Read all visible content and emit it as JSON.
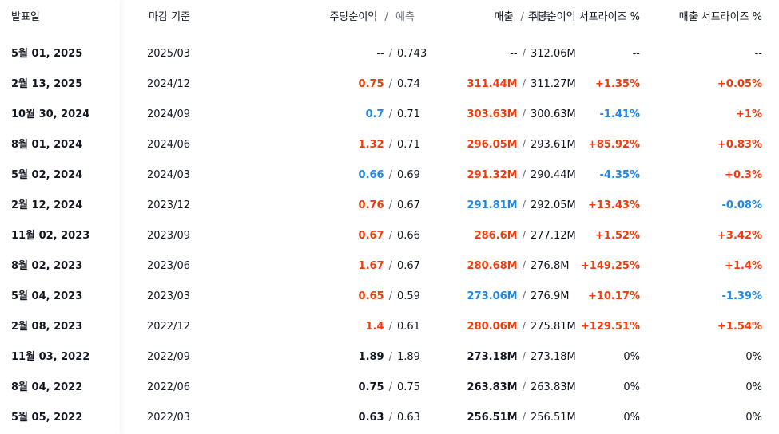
{
  "headers": {
    "date": "발표일",
    "period": "마감 기준",
    "eps": "주당순이익",
    "eps_sep": "/",
    "eps_sub": "예측",
    "rev": "매출",
    "rev_sep": "/",
    "rev_sub": "예측",
    "eps_surprise": "주당순이익 서프라이즈 %",
    "rev_surprise": "매출 서프라이즈 %"
  },
  "colors": {
    "positive": "#f23b0b",
    "negative": "#2087e8",
    "neutral": "#131722",
    "muted": "#6a6d78"
  },
  "rows": [
    {
      "date": "5월 01, 2025",
      "period": "2025/03",
      "eps": "--",
      "eps_fc": "0.743",
      "rev": "--",
      "rev_fc": "312.06M",
      "eps_s": "--",
      "rev_s": "--",
      "eps_c": "neutral",
      "rev_c": "neutral",
      "eps_s_c": "neutral",
      "rev_s_c": "neutral"
    },
    {
      "date": "2월 13, 2025",
      "period": "2024/12",
      "eps": "0.75",
      "eps_fc": "0.74",
      "rev": "311.44M",
      "rev_fc": "311.27M",
      "eps_s": "+1.35%",
      "rev_s": "+0.05%",
      "eps_c": "red",
      "rev_c": "red",
      "eps_s_c": "red",
      "rev_s_c": "red"
    },
    {
      "date": "10월 30, 2024",
      "period": "2024/09",
      "eps": "0.7",
      "eps_fc": "0.71",
      "rev": "303.63M",
      "rev_fc": "300.63M",
      "eps_s": "-1.41%",
      "rev_s": "+1%",
      "eps_c": "blue",
      "rev_c": "red",
      "eps_s_c": "blue",
      "rev_s_c": "red"
    },
    {
      "date": "8월 01, 2024",
      "period": "2024/06",
      "eps": "1.32",
      "eps_fc": "0.71",
      "rev": "296.05M",
      "rev_fc": "293.61M",
      "eps_s": "+85.92%",
      "rev_s": "+0.83%",
      "eps_c": "red",
      "rev_c": "red",
      "eps_s_c": "red",
      "rev_s_c": "red"
    },
    {
      "date": "5월 02, 2024",
      "period": "2024/03",
      "eps": "0.66",
      "eps_fc": "0.69",
      "rev": "291.32M",
      "rev_fc": "290.44M",
      "eps_s": "-4.35%",
      "rev_s": "+0.3%",
      "eps_c": "blue",
      "rev_c": "red",
      "eps_s_c": "blue",
      "rev_s_c": "red"
    },
    {
      "date": "2월 12, 2024",
      "period": "2023/12",
      "eps": "0.76",
      "eps_fc": "0.67",
      "rev": "291.81M",
      "rev_fc": "292.05M",
      "eps_s": "+13.43%",
      "rev_s": "-0.08%",
      "eps_c": "red",
      "rev_c": "blue",
      "eps_s_c": "red",
      "rev_s_c": "blue"
    },
    {
      "date": "11월 02, 2023",
      "period": "2023/09",
      "eps": "0.67",
      "eps_fc": "0.66",
      "rev": "286.6M",
      "rev_fc": "277.12M",
      "eps_s": "+1.52%",
      "rev_s": "+3.42%",
      "eps_c": "red",
      "rev_c": "red",
      "eps_s_c": "red",
      "rev_s_c": "red"
    },
    {
      "date": "8월 02, 2023",
      "period": "2023/06",
      "eps": "1.67",
      "eps_fc": "0.67",
      "rev": "280.68M",
      "rev_fc": "276.8M",
      "eps_s": "+149.25%",
      "rev_s": "+1.4%",
      "eps_c": "red",
      "rev_c": "red",
      "eps_s_c": "red",
      "rev_s_c": "red"
    },
    {
      "date": "5월 04, 2023",
      "period": "2023/03",
      "eps": "0.65",
      "eps_fc": "0.59",
      "rev": "273.06M",
      "rev_fc": "276.9M",
      "eps_s": "+10.17%",
      "rev_s": "-1.39%",
      "eps_c": "red",
      "rev_c": "blue",
      "eps_s_c": "red",
      "rev_s_c": "blue"
    },
    {
      "date": "2월 08, 2023",
      "period": "2022/12",
      "eps": "1.4",
      "eps_fc": "0.61",
      "rev": "280.06M",
      "rev_fc": "275.81M",
      "eps_s": "+129.51%",
      "rev_s": "+1.54%",
      "eps_c": "red",
      "rev_c": "red",
      "eps_s_c": "red",
      "rev_s_c": "red"
    },
    {
      "date": "11월 03, 2022",
      "period": "2022/09",
      "eps": "1.89",
      "eps_fc": "1.89",
      "rev": "273.18M",
      "rev_fc": "273.18M",
      "eps_s": "0%",
      "rev_s": "0%",
      "eps_c": "nbold",
      "rev_c": "nbold",
      "eps_s_c": "neutral",
      "rev_s_c": "neutral"
    },
    {
      "date": "8월 04, 2022",
      "period": "2022/06",
      "eps": "0.75",
      "eps_fc": "0.75",
      "rev": "263.83M",
      "rev_fc": "263.83M",
      "eps_s": "0%",
      "rev_s": "0%",
      "eps_c": "nbold",
      "rev_c": "nbold",
      "eps_s_c": "neutral",
      "rev_s_c": "neutral"
    },
    {
      "date": "5월 05, 2022",
      "period": "2022/03",
      "eps": "0.63",
      "eps_fc": "0.63",
      "rev": "256.51M",
      "rev_fc": "256.51M",
      "eps_s": "0%",
      "rev_s": "0%",
      "eps_c": "nbold",
      "rev_c": "nbold",
      "eps_s_c": "neutral",
      "rev_s_c": "neutral"
    }
  ]
}
